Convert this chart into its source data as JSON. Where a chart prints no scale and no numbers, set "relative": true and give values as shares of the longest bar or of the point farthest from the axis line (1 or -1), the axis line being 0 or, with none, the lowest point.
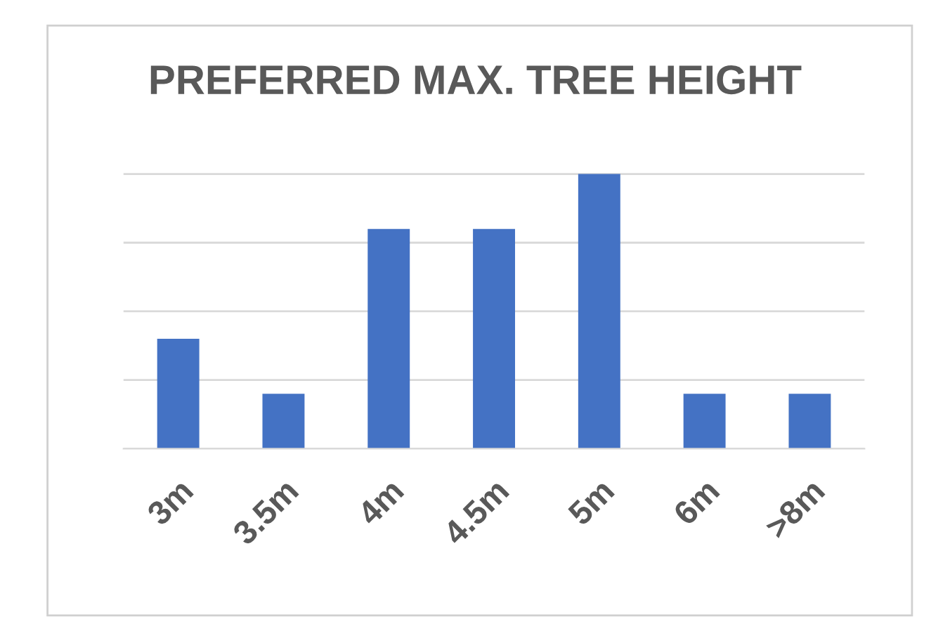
{
  "chart_data": {
    "type": "bar",
    "title": "PREFERRED MAX. TREE HEIGHT",
    "relative": true,
    "grid": "y",
    "categories": [
      "3m",
      "3.5m",
      "4m",
      "4.5m",
      "5m",
      "6m",
      ">8m"
    ],
    "values": [
      0.4,
      0.2,
      0.8,
      0.8,
      1,
      0.2,
      0.2
    ],
    "color": "#4472c4"
  }
}
